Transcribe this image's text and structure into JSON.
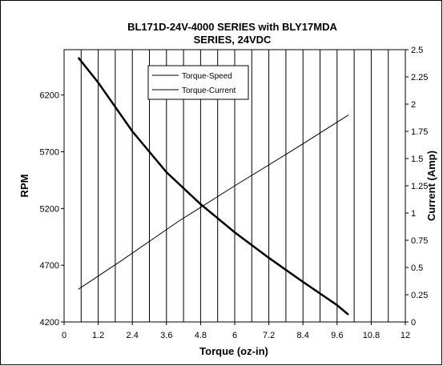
{
  "chart_data": {
    "type": "line",
    "title": [
      "BL171D-24V-4000 SERIES with BLY17MDA",
      "SERIES, 24VDC"
    ],
    "x_label": "Torque (oz-in)",
    "y_label": "RPM",
    "y2_label": "Current (Amp)",
    "xlim": [
      0,
      12
    ],
    "xticks": [
      0,
      1.2,
      2.4,
      3.6,
      4.8,
      6,
      7.2,
      8.4,
      9.6,
      10.8,
      12
    ],
    "xgrid": [
      0.6,
      1.2,
      1.8,
      2.4,
      3,
      3.6,
      4.2,
      4.8,
      5.4,
      6,
      6.6,
      7.2,
      7.8,
      8.4,
      9,
      9.6,
      10.2,
      10.8,
      11.4
    ],
    "ylim": [
      4200,
      6600
    ],
    "yticks": [
      4200,
      4700,
      5200,
      5700,
      6200
    ],
    "y2lim": [
      0,
      2.5
    ],
    "y2ticks": [
      0,
      0.25,
      0.5,
      0.75,
      1,
      1.25,
      1.5,
      1.75,
      2,
      2.25,
      2.5
    ],
    "legend": "top-center",
    "series": [
      {
        "name": "Torque-Speed",
        "color": "#000000",
        "axis": "y",
        "width": 2.5,
        "x": [
          0.5,
          1.2,
          2.4,
          3.6,
          4.8,
          6,
          7.2,
          8.4,
          9.6,
          10
        ],
        "values": [
          6530,
          6310,
          5880,
          5520,
          5238,
          4990,
          4765,
          4553,
          4348,
          4264
        ]
      },
      {
        "name": "Torque-Current",
        "color": "#000000",
        "axis": "y2",
        "width": 1,
        "x": [
          0.5,
          2,
          4,
          6,
          8,
          10
        ],
        "values": [
          0.3,
          0.56,
          0.92,
          1.25,
          1.57,
          1.9
        ]
      }
    ]
  }
}
